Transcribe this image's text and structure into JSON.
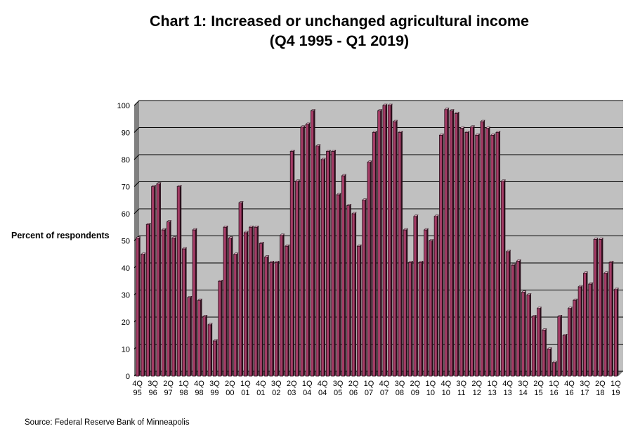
{
  "chart_data": {
    "type": "bar",
    "title": [
      "Chart 1: Increased or unchanged agricultural income",
      "(Q4 1995 - Q1 2019)"
    ],
    "ylabel": "Percent of respondents",
    "source": "Source: Federal Reserve Bank of Minneapolis",
    "ylim": [
      0,
      100
    ],
    "yticks": [
      0,
      10,
      20,
      30,
      40,
      50,
      60,
      70,
      80,
      90,
      100
    ],
    "grid": true,
    "colors": {
      "plot_bg": "#c0c0c0",
      "bar_face": "#a43c66",
      "bar_dark": "#2a0f1b",
      "bar_light": "#e8b4c8",
      "grid": "#000000",
      "floor": "#808080"
    },
    "xticks": [
      {
        "q": "4Q",
        "y": "95"
      },
      {
        "q": "3Q",
        "y": "96"
      },
      {
        "q": "2Q",
        "y": "97"
      },
      {
        "q": "1Q",
        "y": "98"
      },
      {
        "q": "4Q",
        "y": "98"
      },
      {
        "q": "3Q",
        "y": "99"
      },
      {
        "q": "2Q",
        "y": "00"
      },
      {
        "q": "1Q",
        "y": "01"
      },
      {
        "q": "4Q",
        "y": "01"
      },
      {
        "q": "3Q",
        "y": "02"
      },
      {
        "q": "2Q",
        "y": "03"
      },
      {
        "q": "1Q",
        "y": "04"
      },
      {
        "q": "4Q",
        "y": "04"
      },
      {
        "q": "3Q",
        "y": "05"
      },
      {
        "q": "2Q",
        "y": "06"
      },
      {
        "q": "1Q",
        "y": "07"
      },
      {
        "q": "4Q",
        "y": "07"
      },
      {
        "q": "3Q",
        "y": "08"
      },
      {
        "q": "2Q",
        "y": "09"
      },
      {
        "q": "1Q",
        "y": "10"
      },
      {
        "q": "4Q",
        "y": "10"
      },
      {
        "q": "3Q",
        "y": "11"
      },
      {
        "q": "2Q",
        "y": "12"
      },
      {
        "q": "1Q",
        "y": "13"
      },
      {
        "q": "4Q",
        "y": "13"
      },
      {
        "q": "3Q",
        "y": "14"
      },
      {
        "q": "2Q",
        "y": "15"
      },
      {
        "q": "1Q",
        "y": "16"
      },
      {
        "q": "4Q",
        "y": "16"
      },
      {
        "q": "3Q",
        "y": "17"
      },
      {
        "q": "2Q",
        "y": "18"
      },
      {
        "q": "1Q",
        "y": "19"
      }
    ],
    "values": [
      51,
      45,
      56,
      70,
      71,
      54,
      57,
      51,
      70,
      47,
      29,
      54,
      28,
      22,
      19,
      13,
      35,
      55,
      51,
      45,
      64,
      53,
      55,
      55,
      49,
      44,
      42,
      42,
      52,
      48,
      83,
      72,
      92,
      93,
      98,
      85,
      80,
      83,
      83,
      67,
      74,
      63,
      60,
      48,
      65,
      79,
      90,
      98,
      100,
      100,
      94,
      90,
      54,
      42,
      59,
      42,
      54,
      50,
      59,
      89,
      98.5,
      98,
      97,
      91.5,
      90,
      92,
      89,
      94,
      91.5,
      89,
      90,
      72,
      46,
      41,
      42.5,
      31,
      30,
      22,
      25,
      17,
      10,
      5,
      22,
      15,
      25,
      28,
      33,
      38,
      34,
      50.5,
      50.5,
      38,
      42,
      32
    ]
  }
}
